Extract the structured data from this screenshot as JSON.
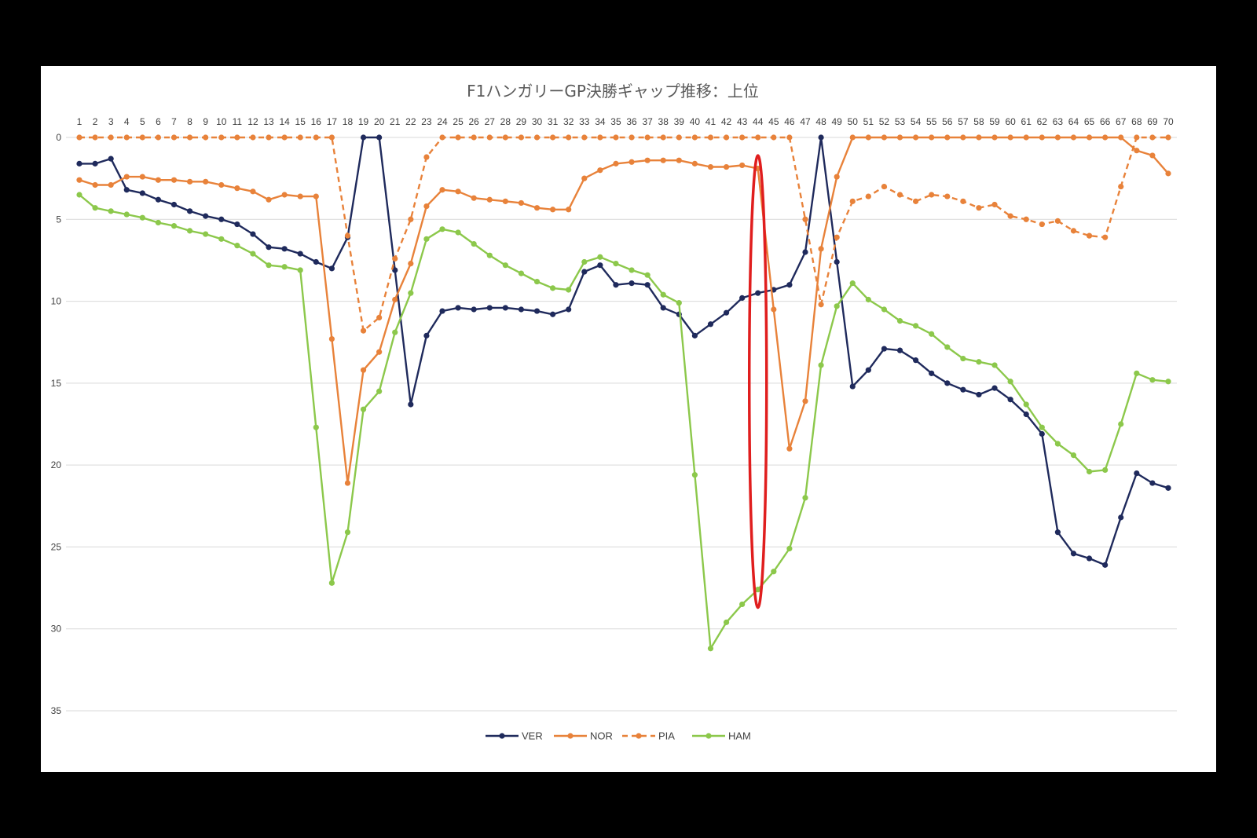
{
  "chart_data": {
    "type": "line",
    "title": "F1ハンガリーGP決勝ギャップ推移：上位",
    "x_axis": {
      "position": "top",
      "ticks": [
        1,
        2,
        3,
        4,
        5,
        6,
        7,
        8,
        9,
        10,
        11,
        12,
        13,
        14,
        15,
        16,
        17,
        18,
        19,
        20,
        21,
        22,
        23,
        24,
        25,
        26,
        27,
        28,
        29,
        30,
        31,
        32,
        33,
        34,
        35,
        36,
        37,
        38,
        39,
        40,
        41,
        42,
        43,
        44,
        45,
        46,
        47,
        48,
        49,
        50,
        51,
        52,
        53,
        54,
        55,
        56,
        57,
        58,
        59,
        60,
        61,
        62,
        63,
        64,
        65,
        66,
        67,
        68,
        69,
        70
      ]
    },
    "y_axis": {
      "reversed": true,
      "ylim": [
        0,
        35
      ],
      "ticks": [
        0,
        5,
        10,
        15,
        20,
        25,
        30,
        35
      ]
    },
    "grid": "horizontal",
    "legend_position": "bottom",
    "x": [
      1,
      2,
      3,
      4,
      5,
      6,
      7,
      8,
      9,
      10,
      11,
      12,
      13,
      14,
      15,
      16,
      17,
      18,
      19,
      20,
      21,
      22,
      23,
      24,
      25,
      26,
      27,
      28,
      29,
      30,
      31,
      32,
      33,
      34,
      35,
      36,
      37,
      38,
      39,
      40,
      41,
      42,
      43,
      44,
      45,
      46,
      47,
      48,
      49,
      50,
      51,
      52,
      53,
      54,
      55,
      56,
      57,
      58,
      59,
      60,
      61,
      62,
      63,
      64,
      65,
      66,
      67,
      68,
      69,
      70
    ],
    "series": [
      {
        "name": "VER",
        "color": "#1f2a5c",
        "dash": "solid",
        "values": [
          1.6,
          1.6,
          1.3,
          3.2,
          3.4,
          3.8,
          4.1,
          4.5,
          4.8,
          5.0,
          5.3,
          5.9,
          6.7,
          6.8,
          7.1,
          7.6,
          8.0,
          6.1,
          0,
          0,
          8.1,
          16.3,
          12.1,
          10.6,
          10.4,
          10.5,
          10.4,
          10.4,
          10.5,
          10.6,
          10.8,
          10.5,
          8.2,
          7.8,
          9.0,
          8.9,
          9.0,
          10.4,
          10.8,
          12.1,
          11.4,
          10.7,
          9.8,
          9.5,
          9.3,
          9.0,
          7.0,
          0,
          7.6,
          15.2,
          14.2,
          12.9,
          13.0,
          13.6,
          14.4,
          15.0,
          15.4,
          15.7,
          15.3,
          16.0,
          16.9,
          18.1,
          24.1,
          25.4,
          25.7,
          26.1,
          23.2,
          20.5,
          21.1,
          21.4
        ]
      },
      {
        "name": "NOR",
        "color": "#e8823a",
        "dash": "solid",
        "values": [
          2.6,
          2.9,
          2.9,
          2.4,
          2.4,
          2.6,
          2.6,
          2.7,
          2.7,
          2.9,
          3.1,
          3.3,
          3.8,
          3.5,
          3.6,
          3.6,
          12.3,
          21.1,
          14.2,
          13.1,
          9.9,
          7.7,
          4.2,
          3.2,
          3.3,
          3.7,
          3.8,
          3.9,
          4.0,
          4.3,
          4.4,
          4.4,
          2.5,
          2.0,
          1.6,
          1.5,
          1.4,
          1.4,
          1.4,
          1.6,
          1.8,
          1.8,
          1.7,
          1.9,
          10.5,
          19.0,
          16.1,
          6.8,
          2.4,
          0,
          0,
          0,
          0,
          0,
          0,
          0,
          0,
          0,
          0,
          0,
          0,
          0,
          0,
          0,
          0,
          0,
          0,
          0.8,
          1.1,
          2.2
        ]
      },
      {
        "name": "PIA",
        "color": "#e8823a",
        "dash": "dashed",
        "values": [
          0,
          0,
          0,
          0,
          0,
          0,
          0,
          0,
          0,
          0,
          0,
          0,
          0,
          0,
          0,
          0,
          0,
          6.0,
          11.8,
          11.0,
          7.4,
          5.0,
          1.2,
          0,
          0,
          0,
          0,
          0,
          0,
          0,
          0,
          0,
          0,
          0,
          0,
          0,
          0,
          0,
          0,
          0,
          0,
          0,
          0,
          0,
          0,
          0,
          5.0,
          10.2,
          6.1,
          3.9,
          3.6,
          3.0,
          3.5,
          3.9,
          3.5,
          3.6,
          3.9,
          4.3,
          4.1,
          4.8,
          5.0,
          5.3,
          5.1,
          5.7,
          6.0,
          6.1,
          3.0,
          0,
          0,
          0
        ]
      },
      {
        "name": "HAM",
        "color": "#8cc84b",
        "dash": "solid",
        "values": [
          3.5,
          4.3,
          4.5,
          4.7,
          4.9,
          5.2,
          5.4,
          5.7,
          5.9,
          6.2,
          6.6,
          7.1,
          7.8,
          7.9,
          8.1,
          17.7,
          27.2,
          24.1,
          16.6,
          15.5,
          11.9,
          9.5,
          6.2,
          5.6,
          5.8,
          6.5,
          7.2,
          7.8,
          8.3,
          8.8,
          9.2,
          9.3,
          7.6,
          7.3,
          7.7,
          8.1,
          8.4,
          9.6,
          10.1,
          20.6,
          31.2,
          29.6,
          28.5,
          27.6,
          26.5,
          25.1,
          22.0,
          13.9,
          10.3,
          8.9,
          9.9,
          10.5,
          11.2,
          11.5,
          12.0,
          12.8,
          13.5,
          13.7,
          13.9,
          14.9,
          16.3,
          17.7,
          18.7,
          19.4,
          20.4,
          20.3,
          17.5,
          14.4,
          14.8,
          14.9
        ]
      }
    ],
    "annotation": {
      "type": "ellipse",
      "color": "#e01e1e",
      "at_x": 44,
      "y_range": [
        1.1,
        28.7
      ]
    }
  }
}
